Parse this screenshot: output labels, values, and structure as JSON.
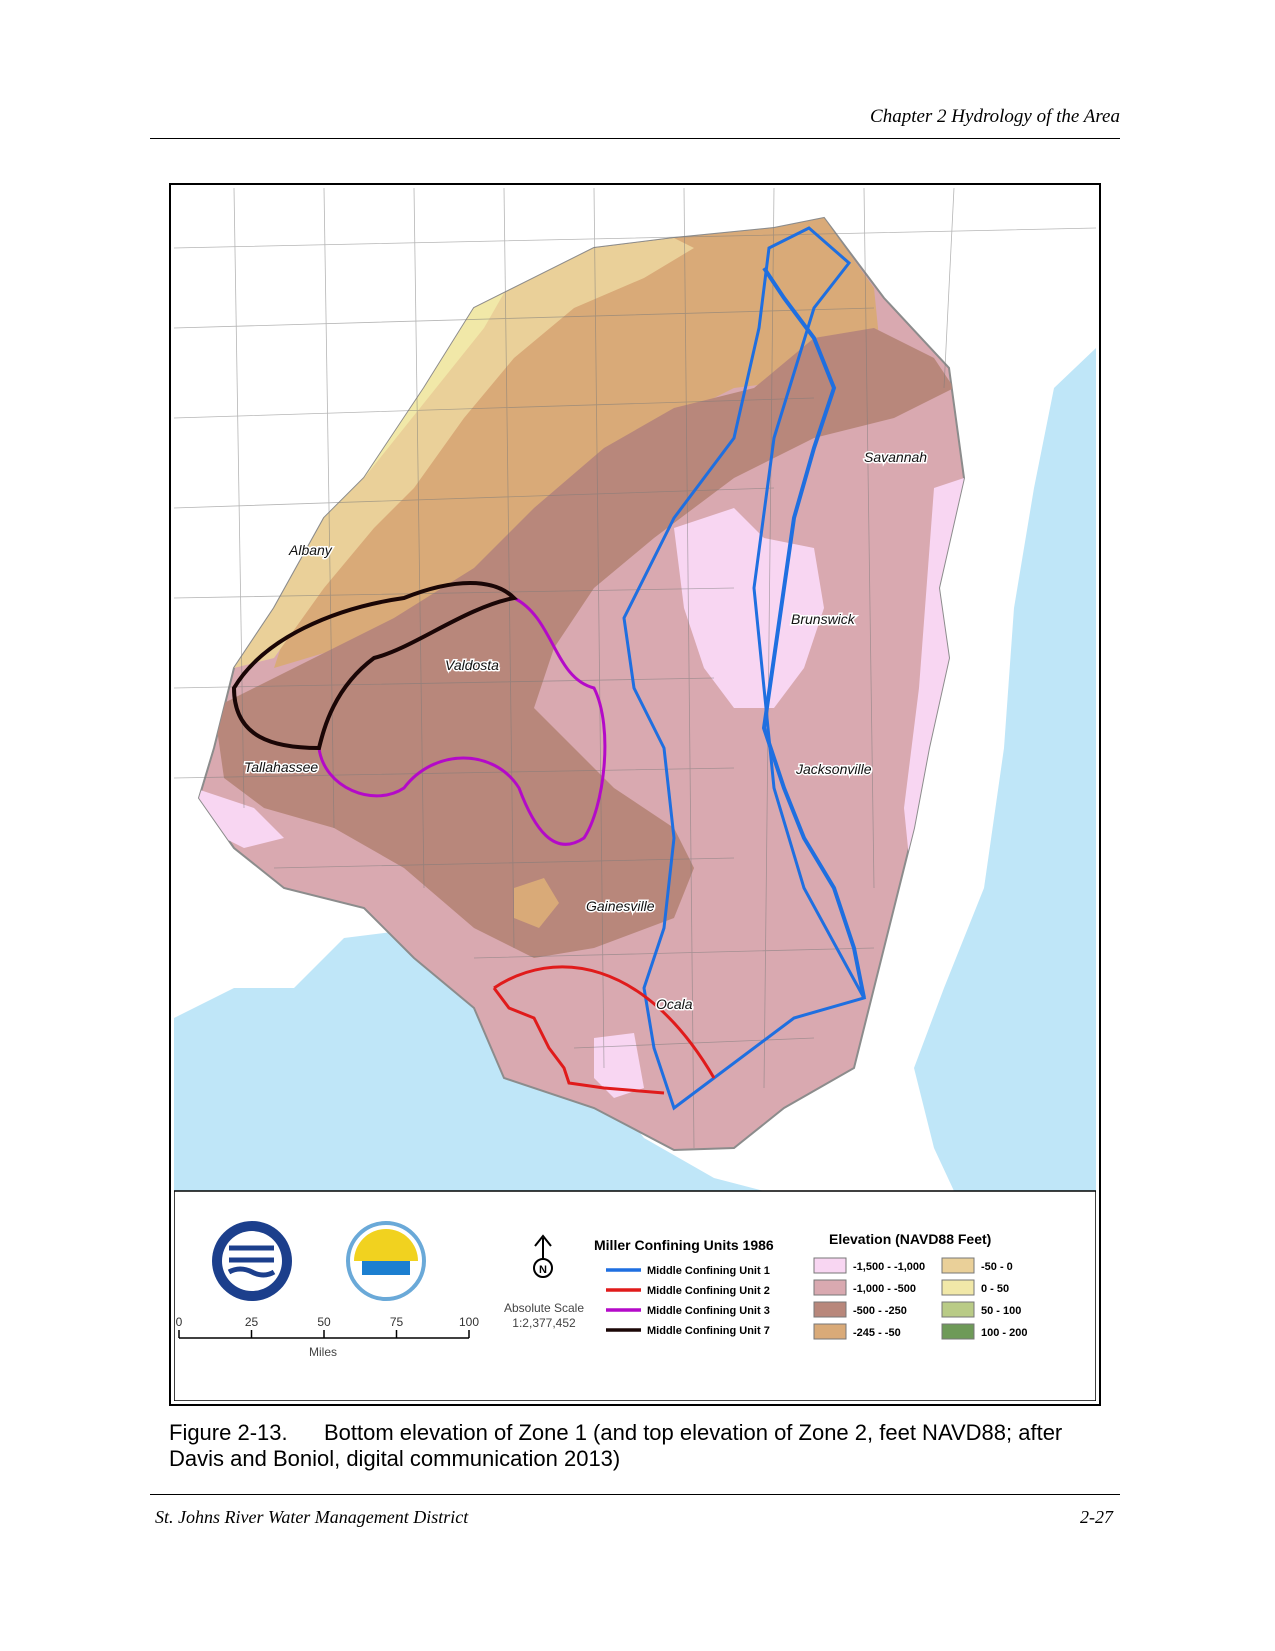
{
  "header": {
    "chapter": "Chapter 2 Hydrology of the Area"
  },
  "map": {
    "cities": [
      "Albany",
      "Savannah",
      "Brunswick",
      "Valdosta",
      "Tallahassee",
      "Jacksonville",
      "Gainesville",
      "Ocala"
    ],
    "colors": {
      "water": "#bfe6f8",
      "land": "#ffffff",
      "county_line": "#7a7a7a",
      "study_outline": "#8c8c8c"
    }
  },
  "legend": {
    "logo_sjrwmd": "St. Johns River Water Management District",
    "logo_srwmd": "Suwannee River Water Management District",
    "north_symbol": "N",
    "scale_title": "Absolute Scale",
    "scale_ratio": "1:2,377,452",
    "scale_ticks": [
      "0",
      "25",
      "50",
      "75",
      "100"
    ],
    "scale_unit": "Miles",
    "units_title": "Miller Confining Units 1986",
    "units": [
      {
        "label": "Middle Confining Unit 1",
        "color": "#1f6fe0"
      },
      {
        "label": "Middle Confining Unit 2",
        "color": "#e01b1b"
      },
      {
        "label": "Middle Confining Unit 3",
        "color": "#b40ac8"
      },
      {
        "label": "Middle Confining Unit 7",
        "color": "#1a0606"
      }
    ],
    "elevation_title": "Elevation (NAVD88 Feet)",
    "elevation_classes": [
      {
        "label": "-1,500 - -1,000",
        "color": "#f8d6f2"
      },
      {
        "label": "-1,000 - -500",
        "color": "#d9a9b0"
      },
      {
        "label": "-500 - -250",
        "color": "#b8877b"
      },
      {
        "label": "-245 - -50",
        "color": "#d9aa78"
      },
      {
        "label": "-50 - 0",
        "color": "#ead099"
      },
      {
        "label": "0 - 50",
        "color": "#f1e8a8"
      },
      {
        "label": "50 - 100",
        "color": "#b9cb86"
      },
      {
        "label": "100 - 200",
        "color": "#6e9a58"
      }
    ]
  },
  "caption": {
    "number": "Figure 2-13.",
    "text": "Bottom elevation of Zone 1 (and top elevation of Zone 2, feet NAVD88; after Davis and Boniol, digital communication 2013)"
  },
  "footer": {
    "left": "St. Johns River Water Management District",
    "right": "2-27"
  }
}
